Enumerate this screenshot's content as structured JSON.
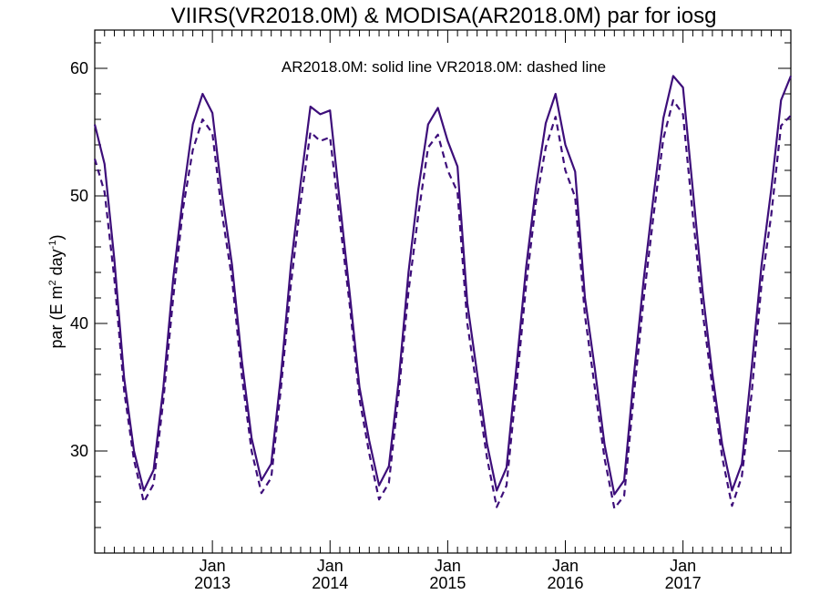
{
  "chart_data": {
    "type": "line",
    "title": "VIIRS(VR2018.0M) & MODISA(AR2018.0M)  par for iosg",
    "annotation": "AR2018.0M: solid line   VR2018.0M: dashed line",
    "ylabel": {
      "main": "par (E m",
      "sup1": "2",
      "mid": " day",
      "sup2": "-1",
      "end": ")"
    },
    "xlim": [
      "2012-01",
      "2017-12"
    ],
    "ylim": [
      22,
      63
    ],
    "y_ticks": [
      30,
      40,
      50,
      60
    ],
    "x_ticks": [
      {
        "month": "2013-01",
        "line1": "Jan",
        "line2": "2013"
      },
      {
        "month": "2014-01",
        "line1": "Jan",
        "line2": "2014"
      },
      {
        "month": "2015-01",
        "line1": "Jan",
        "line2": "2015"
      },
      {
        "month": "2016-01",
        "line1": "Jan",
        "line2": "2016"
      },
      {
        "month": "2017-01",
        "line1": "Jan",
        "line2": "2017"
      }
    ],
    "line_color": "#3d0e7a",
    "start_month": "2012-01",
    "series": [
      {
        "name": "AR2018.0M",
        "style": "solid",
        "values": [
          55.6,
          52.5,
          45.0,
          35.7,
          30.0,
          26.9,
          28.5,
          35.0,
          43.5,
          50.0,
          55.6,
          58.0,
          56.5,
          50.0,
          44.6,
          37.1,
          31.0,
          27.7,
          29.0,
          36.0,
          44.5,
          51.0,
          57.0,
          56.4,
          56.7,
          49.5,
          42.4,
          35.0,
          30.8,
          27.3,
          28.8,
          35.5,
          44.0,
          50.5,
          55.6,
          56.9,
          54.3,
          52.3,
          41.6,
          36.1,
          30.6,
          26.9,
          28.7,
          36.5,
          44.4,
          50.7,
          55.7,
          58.0,
          54.0,
          51.9,
          42.0,
          36.5,
          30.5,
          26.6,
          27.7,
          36.0,
          43.5,
          50.0,
          56.1,
          59.4,
          58.5,
          50.5,
          42.5,
          36.0,
          30.5,
          26.9,
          29.0,
          36.5,
          44.5,
          50.5,
          57.5,
          59.4
        ]
      },
      {
        "name": "VR2018.0M",
        "style": "dashed",
        "values": [
          52.9,
          50.3,
          43.5,
          34.7,
          29.3,
          26.0,
          27.4,
          34.0,
          42.0,
          49.0,
          53.6,
          56.0,
          54.9,
          48.5,
          43.5,
          35.9,
          30.0,
          26.7,
          27.9,
          35.0,
          43.0,
          49.5,
          55.0,
          54.3,
          54.6,
          48.0,
          41.5,
          34.1,
          29.8,
          26.2,
          27.5,
          34.5,
          42.5,
          48.5,
          53.8,
          54.8,
          52.0,
          50.3,
          40.0,
          34.8,
          29.5,
          25.6,
          27.3,
          35.0,
          43.0,
          49.5,
          53.8,
          56.2,
          52.0,
          49.9,
          40.6,
          35.0,
          29.4,
          25.5,
          26.5,
          34.5,
          42.0,
          48.5,
          54.5,
          57.5,
          56.4,
          48.5,
          40.9,
          35.0,
          29.5,
          25.7,
          28.0,
          34.5,
          43.0,
          48.5,
          55.5,
          56.3
        ]
      }
    ]
  }
}
